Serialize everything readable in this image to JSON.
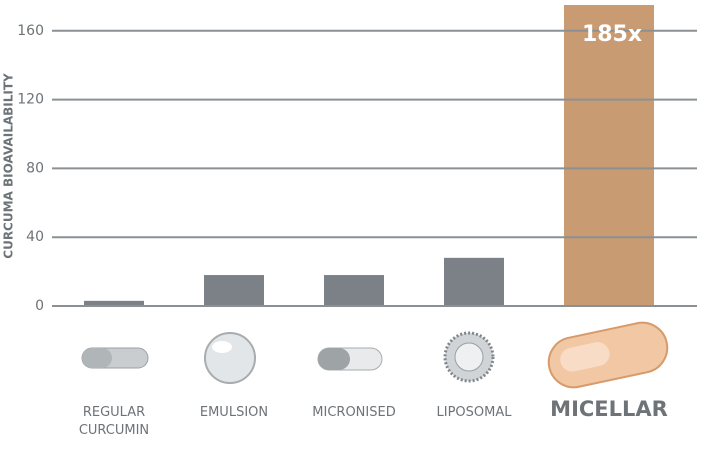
{
  "chart_data": {
    "type": "bar",
    "y_label": "CURCUMA BIOAVAILABILITY",
    "categories": [
      "REGULAR CURCUMIN",
      "EMULSION",
      "MICRONISED",
      "LIPOSOMAL",
      "MICELLAR"
    ],
    "values": [
      3,
      18,
      18,
      28,
      185
    ],
    "value_labels": [
      null,
      null,
      null,
      null,
      "185x"
    ],
    "colors": [
      "#7b8186",
      "#7b8186",
      "#7b8186",
      "#7b8186",
      "#c99b72"
    ],
    "ylim": [
      0,
      175
    ],
    "yticks": [
      0,
      40,
      80,
      120,
      160
    ],
    "grid": true
  }
}
